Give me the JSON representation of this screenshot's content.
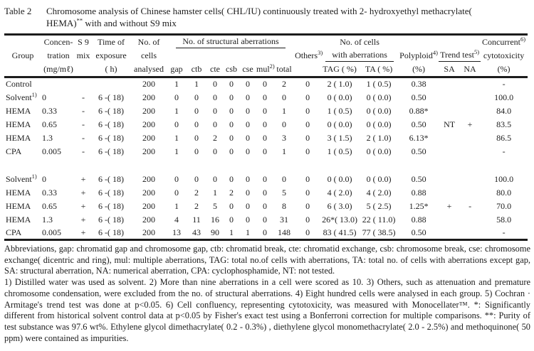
{
  "title": {
    "label": "Table 2",
    "line": "Chromosome analysis of Chinese hamster cells( CHL/IU) continuously treated with 2- hydroxyethyl methacrylate( HEMA)",
    "sup": "**",
    "rest": " with and without S9 mix"
  },
  "table": {
    "header": {
      "group": "Group",
      "concen_l1": "Concen-",
      "concen_l2": "tration",
      "concen_l3": "(mg/mℓ)",
      "s9_l1": "S 9",
      "s9_l2": "mix",
      "time_l1": "Time of",
      "time_l2": "exposure",
      "time_l3": "( h)",
      "cells_l1": "No. of",
      "cells_l2": "cells",
      "cells_l3": "analysed",
      "struct_aber": "No. of structural aberrations",
      "gap": "gap",
      "ctb": "ctb",
      "cte": "cte",
      "csb": "csb",
      "cse": "cse",
      "mul": "mul",
      "mul_sup": "2)",
      "total": "total",
      "others": "Others",
      "others_sup": "3)",
      "cells_aber_l1": "No. of cells",
      "cells_aber_l2": "with aberrations",
      "tag": "TAG ( %)",
      "ta": "TA ( %)",
      "polyploid": "Polyploid",
      "polyploid_sup": "4)",
      "poly_pct": "(%)",
      "trend": "Trend test",
      "trend_sup": "5)",
      "sa": "SA",
      "na": "NA",
      "concurrent": "Concurrent",
      "concurrent_sup": "6)",
      "cyto": "cytotoxicity",
      "cyto_pct": "(%)"
    },
    "groups": [
      {
        "rows": [
          {
            "group": "Control",
            "sup": "",
            "conc": "",
            "s9": "",
            "time": "",
            "cells": "200",
            "gap": "1",
            "ctb": "1",
            "cte": "0",
            "csb": "0",
            "cse": "0",
            "mul": "0",
            "total": "2",
            "others": "0",
            "tag": "2 ( 1.0)",
            "ta": "1 ( 0.5)",
            "poly": "0.38",
            "sa": "",
            "na": "",
            "cyto": "-"
          },
          {
            "group": "Solvent",
            "sup": "1)",
            "conc": "0",
            "s9": "-",
            "time": "6 -( 18)",
            "cells": "200",
            "gap": "0",
            "ctb": "0",
            "cte": "0",
            "csb": "0",
            "cse": "0",
            "mul": "0",
            "total": "0",
            "others": "0",
            "tag": "0 ( 0.0)",
            "ta": "0 ( 0.0)",
            "poly": "0.50",
            "sa": "",
            "na": "",
            "cyto": "100.0"
          },
          {
            "group": "HEMA",
            "sup": "",
            "conc": "0.33",
            "s9": "-",
            "time": "6 -( 18)",
            "cells": "200",
            "gap": "1",
            "ctb": "0",
            "cte": "0",
            "csb": "0",
            "cse": "0",
            "mul": "0",
            "total": "1",
            "others": "0",
            "tag": "1 ( 0.5)",
            "ta": "0 ( 0.0)",
            "poly": "0.88*",
            "sa": "",
            "na": "",
            "cyto": "84.0"
          },
          {
            "group": "HEMA",
            "sup": "",
            "conc": "0.65",
            "s9": "-",
            "time": "6 -( 18)",
            "cells": "200",
            "gap": "0",
            "ctb": "0",
            "cte": "0",
            "csb": "0",
            "cse": "0",
            "mul": "0",
            "total": "0",
            "others": "0",
            "tag": "0 ( 0.0)",
            "ta": "0 ( 0.0)",
            "poly": "0.50",
            "sa": "NT",
            "na": "+",
            "cyto": "83.5"
          },
          {
            "group": "HEMA",
            "sup": "",
            "conc": "1.3",
            "s9": "-",
            "time": "6 -( 18)",
            "cells": "200",
            "gap": "1",
            "ctb": "0",
            "cte": "2",
            "csb": "0",
            "cse": "0",
            "mul": "0",
            "total": "3",
            "others": "0",
            "tag": "3 ( 1.5)",
            "ta": "2 ( 1.0)",
            "poly": "6.13*",
            "sa": "",
            "na": "",
            "cyto": "86.5"
          },
          {
            "group": "CPA",
            "sup": "",
            "conc": "0.005",
            "s9": "-",
            "time": "6 -( 18)",
            "cells": "200",
            "gap": "1",
            "ctb": "0",
            "cte": "0",
            "csb": "0",
            "cse": "0",
            "mul": "0",
            "total": "1",
            "others": "0",
            "tag": "1 ( 0.5)",
            "ta": "0 ( 0.0)",
            "poly": "0.50",
            "sa": "",
            "na": "",
            "cyto": "-"
          }
        ]
      },
      {
        "rows": [
          {
            "group": "Solvent",
            "sup": "1)",
            "conc": "0",
            "s9": "+",
            "time": "6 -( 18)",
            "cells": "200",
            "gap": "0",
            "ctb": "0",
            "cte": "0",
            "csb": "0",
            "cse": "0",
            "mul": "0",
            "total": "0",
            "others": "0",
            "tag": "0 ( 0.0)",
            "ta": "0 ( 0.0)",
            "poly": "0.50",
            "sa": "",
            "na": "",
            "cyto": "100.0"
          },
          {
            "group": "HEMA",
            "sup": "",
            "conc": "0.33",
            "s9": "+",
            "time": "6 -( 18)",
            "cells": "200",
            "gap": "0",
            "ctb": "2",
            "cte": "1",
            "csb": "2",
            "cse": "0",
            "mul": "0",
            "total": "5",
            "others": "0",
            "tag": "4 ( 2.0)",
            "ta": "4 ( 2.0)",
            "poly": "0.88",
            "sa": "",
            "na": "",
            "cyto": "80.0"
          },
          {
            "group": "HEMA",
            "sup": "",
            "conc": "0.65",
            "s9": "+",
            "time": "6 -( 18)",
            "cells": "200",
            "gap": "1",
            "ctb": "2",
            "cte": "5",
            "csb": "0",
            "cse": "0",
            "mul": "0",
            "total": "8",
            "others": "0",
            "tag": "6 ( 3.0)",
            "ta": "5 ( 2.5)",
            "poly": "1.25*",
            "sa": "+",
            "na": "-",
            "cyto": "70.0"
          },
          {
            "group": "HEMA",
            "sup": "",
            "conc": "1.3",
            "s9": "+",
            "time": "6 -( 18)",
            "cells": "200",
            "gap": "4",
            "ctb": "11",
            "cte": "16",
            "csb": "0",
            "cse": "0",
            "mul": "0",
            "total": "31",
            "others": "0",
            "tag": "26*( 13.0)",
            "ta": "22 ( 11.0)",
            "poly": "0.88",
            "sa": "",
            "na": "",
            "cyto": "58.0"
          },
          {
            "group": "CPA",
            "sup": "",
            "conc": "0.005",
            "s9": "+",
            "time": "6 -( 18)",
            "cells": "200",
            "gap": "13",
            "ctb": "43",
            "cte": "90",
            "csb": "1",
            "cse": "1",
            "mul": "0",
            "total": "148",
            "others": "0",
            "tag": "83 ( 41.5)",
            "ta": "77 ( 38.5)",
            "poly": "0.50",
            "sa": "",
            "na": "",
            "cyto": "-"
          }
        ]
      }
    ]
  },
  "footnotes": [
    "Abbreviations,  gap: chromatid gap and chromosome gap,  ctb: chromatid break,  cte:  chromatid exchange,  csb: chromosome break, cse: chromosome exchange( dicentric and ring),  mul: multiple aberrations,  TAG: total no.of cells with aberrations, TA: total no. of cells with aberrations except gap, SA: structural aberration, NA: numerical aberration,  CPA: cyclophosphamide,  NT: not tested.",
    "1) Distilled water was used as solvent.   2) More than nine aberrations in a cell were scored as 10.   3) Others,  such as attenuation and premature chromosome condensation, were excluded from the no. of structural aberrations.   4) Eight hundred cells were analysed in each group.   5) Cochran · Armitage's trend test was  done at p<0.05.   6) Cell confluency, representing cytotoxicity,  was measured with Monocellater™.   *: Significantly different from historical solvent control data at p<0.05 by Fisher's exact test using a Bonferroni correction for multiple comparisons.   **: Purity of test substance was 97.6 wt%.   Ethylene glycol dimethacrylate( 0.2 - 0.3%) , diethylene glycol monomethacrylate( 2.0 - 2.5%) and methoquinone( 50 ppm) were contained as impurities."
  ]
}
